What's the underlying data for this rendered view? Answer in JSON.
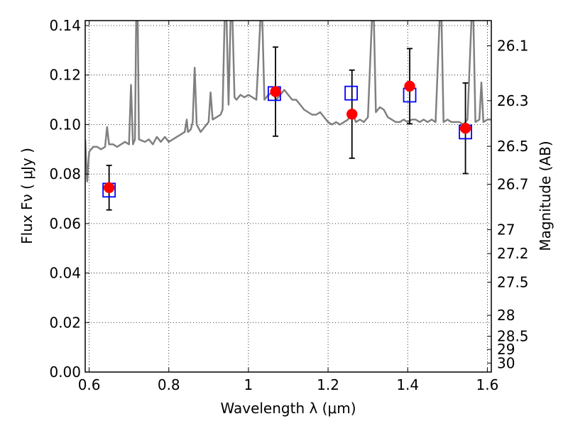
{
  "chart_data": {
    "type": "scatter",
    "xlabel": "Wavelength  λ (μm)",
    "ylabel": "Flux  Fν ( μJy )",
    "ylabel_right": "Magnitude (AB)",
    "xlim": [
      0.59,
      1.61
    ],
    "ylim": [
      0.0,
      0.142
    ],
    "x_ticks": [
      0.6,
      0.8,
      1.0,
      1.2,
      1.4,
      1.6
    ],
    "x_tick_labels": [
      "0.6",
      "0.8",
      "1",
      "1.2",
      "1.4",
      "1.6"
    ],
    "y_ticks": [
      0.0,
      0.02,
      0.04,
      0.06,
      0.08,
      0.1,
      0.12,
      0.14
    ],
    "y_tick_labels": [
      "0.00",
      "0.02",
      "0.04",
      "0.06",
      "0.08",
      "0.10",
      "0.12",
      "0.14"
    ],
    "right_ticks": [
      {
        "mag": 26.1,
        "label": "26.1"
      },
      {
        "mag": 26.3,
        "label": "26.3"
      },
      {
        "mag": 26.5,
        "label": "26.5"
      },
      {
        "mag": 26.7,
        "label": "26.7"
      },
      {
        "mag": 27.0,
        "label": "27"
      },
      {
        "mag": 27.2,
        "label": "27.2"
      },
      {
        "mag": 27.5,
        "label": "27.5"
      },
      {
        "mag": 28.0,
        "label": "28"
      },
      {
        "mag": 28.5,
        "label": "28.5"
      },
      {
        "mag": 29.0,
        "label": "29"
      },
      {
        "mag": 30.0,
        "label": "30"
      }
    ],
    "grid": true,
    "series": [
      {
        "kind": "spectrum",
        "color": "#808080",
        "points": [
          [
            0.59,
            0.094
          ],
          [
            0.595,
            0.077
          ],
          [
            0.6,
            0.089
          ],
          [
            0.61,
            0.091
          ],
          [
            0.62,
            0.091
          ],
          [
            0.63,
            0.09
          ],
          [
            0.64,
            0.091
          ],
          [
            0.645,
            0.099
          ],
          [
            0.65,
            0.092
          ],
          [
            0.66,
            0.092
          ],
          [
            0.67,
            0.091
          ],
          [
            0.68,
            0.092
          ],
          [
            0.69,
            0.093
          ],
          [
            0.7,
            0.092
          ],
          [
            0.705,
            0.116
          ],
          [
            0.71,
            0.092
          ],
          [
            0.715,
            0.094
          ],
          [
            0.718,
            0.142
          ],
          [
            0.722,
            0.142
          ],
          [
            0.725,
            0.094
          ],
          [
            0.74,
            0.093
          ],
          [
            0.75,
            0.094
          ],
          [
            0.76,
            0.092
          ],
          [
            0.77,
            0.095
          ],
          [
            0.78,
            0.093
          ],
          [
            0.79,
            0.095
          ],
          [
            0.8,
            0.093
          ],
          [
            0.81,
            0.094
          ],
          [
            0.82,
            0.095
          ],
          [
            0.83,
            0.096
          ],
          [
            0.84,
            0.097
          ],
          [
            0.845,
            0.102
          ],
          [
            0.848,
            0.097
          ],
          [
            0.855,
            0.098
          ],
          [
            0.86,
            0.101
          ],
          [
            0.865,
            0.123
          ],
          [
            0.87,
            0.1
          ],
          [
            0.88,
            0.097
          ],
          [
            0.89,
            0.099
          ],
          [
            0.9,
            0.101
          ],
          [
            0.905,
            0.113
          ],
          [
            0.91,
            0.102
          ],
          [
            0.92,
            0.103
          ],
          [
            0.93,
            0.104
          ],
          [
            0.935,
            0.106
          ],
          [
            0.94,
            0.142
          ],
          [
            0.945,
            0.142
          ],
          [
            0.95,
            0.108
          ],
          [
            0.955,
            0.142
          ],
          [
            0.96,
            0.142
          ],
          [
            0.965,
            0.111
          ],
          [
            0.97,
            0.11
          ],
          [
            0.98,
            0.112
          ],
          [
            0.99,
            0.111
          ],
          [
            1.0,
            0.112
          ],
          [
            1.01,
            0.111
          ],
          [
            1.02,
            0.11
          ],
          [
            1.03,
            0.142
          ],
          [
            1.035,
            0.142
          ],
          [
            1.04,
            0.11
          ],
          [
            1.05,
            0.112
          ],
          [
            1.06,
            0.113
          ],
          [
            1.07,
            0.11
          ],
          [
            1.08,
            0.112
          ],
          [
            1.09,
            0.114
          ],
          [
            1.1,
            0.112
          ],
          [
            1.11,
            0.11
          ],
          [
            1.12,
            0.11
          ],
          [
            1.13,
            0.108
          ],
          [
            1.14,
            0.106
          ],
          [
            1.15,
            0.105
          ],
          [
            1.16,
            0.104
          ],
          [
            1.17,
            0.104
          ],
          [
            1.18,
            0.105
          ],
          [
            1.19,
            0.103
          ],
          [
            1.2,
            0.101
          ],
          [
            1.21,
            0.1
          ],
          [
            1.22,
            0.101
          ],
          [
            1.23,
            0.1
          ],
          [
            1.24,
            0.101
          ],
          [
            1.25,
            0.102
          ],
          [
            1.26,
            0.105
          ],
          [
            1.27,
            0.101
          ],
          [
            1.28,
            0.102
          ],
          [
            1.29,
            0.101
          ],
          [
            1.3,
            0.103
          ],
          [
            1.31,
            0.142
          ],
          [
            1.315,
            0.142
          ],
          [
            1.32,
            0.105
          ],
          [
            1.33,
            0.107
          ],
          [
            1.34,
            0.106
          ],
          [
            1.35,
            0.103
          ],
          [
            1.36,
            0.102
          ],
          [
            1.37,
            0.101
          ],
          [
            1.38,
            0.101
          ],
          [
            1.39,
            0.102
          ],
          [
            1.4,
            0.101
          ],
          [
            1.41,
            0.102
          ],
          [
            1.42,
            0.102
          ],
          [
            1.43,
            0.101
          ],
          [
            1.44,
            0.102
          ],
          [
            1.45,
            0.101
          ],
          [
            1.46,
            0.102
          ],
          [
            1.47,
            0.101
          ],
          [
            1.48,
            0.142
          ],
          [
            1.485,
            0.142
          ],
          [
            1.49,
            0.101
          ],
          [
            1.5,
            0.102
          ],
          [
            1.51,
            0.101
          ],
          [
            1.52,
            0.101
          ],
          [
            1.53,
            0.101
          ],
          [
            1.54,
            0.1
          ],
          [
            1.55,
            0.102
          ],
          [
            1.56,
            0.142
          ],
          [
            1.565,
            0.142
          ],
          [
            1.57,
            0.101
          ],
          [
            1.58,
            0.102
          ],
          [
            1.585,
            0.117
          ],
          [
            1.59,
            0.101
          ],
          [
            1.6,
            0.102
          ],
          [
            1.61,
            0.102
          ]
        ]
      },
      {
        "kind": "observed",
        "marker": "circle",
        "color": "#ff0000",
        "points": [
          {
            "x": 0.65,
            "y": 0.0745,
            "yerr": 0.009
          },
          {
            "x": 1.068,
            "y": 0.1133,
            "yerr": 0.018
          },
          {
            "x": 1.26,
            "y": 0.1042,
            "yerr": 0.0178
          },
          {
            "x": 1.405,
            "y": 0.1155,
            "yerr": 0.0152
          },
          {
            "x": 1.545,
            "y": 0.0985,
            "yerr": 0.0183
          }
        ]
      },
      {
        "kind": "model",
        "marker": "square",
        "color": "#0000ff",
        "points": [
          {
            "x": 0.65,
            "y": 0.0735
          },
          {
            "x": 1.065,
            "y": 0.1125
          },
          {
            "x": 1.258,
            "y": 0.1127
          },
          {
            "x": 1.405,
            "y": 0.1119
          },
          {
            "x": 1.545,
            "y": 0.097
          }
        ]
      }
    ]
  }
}
